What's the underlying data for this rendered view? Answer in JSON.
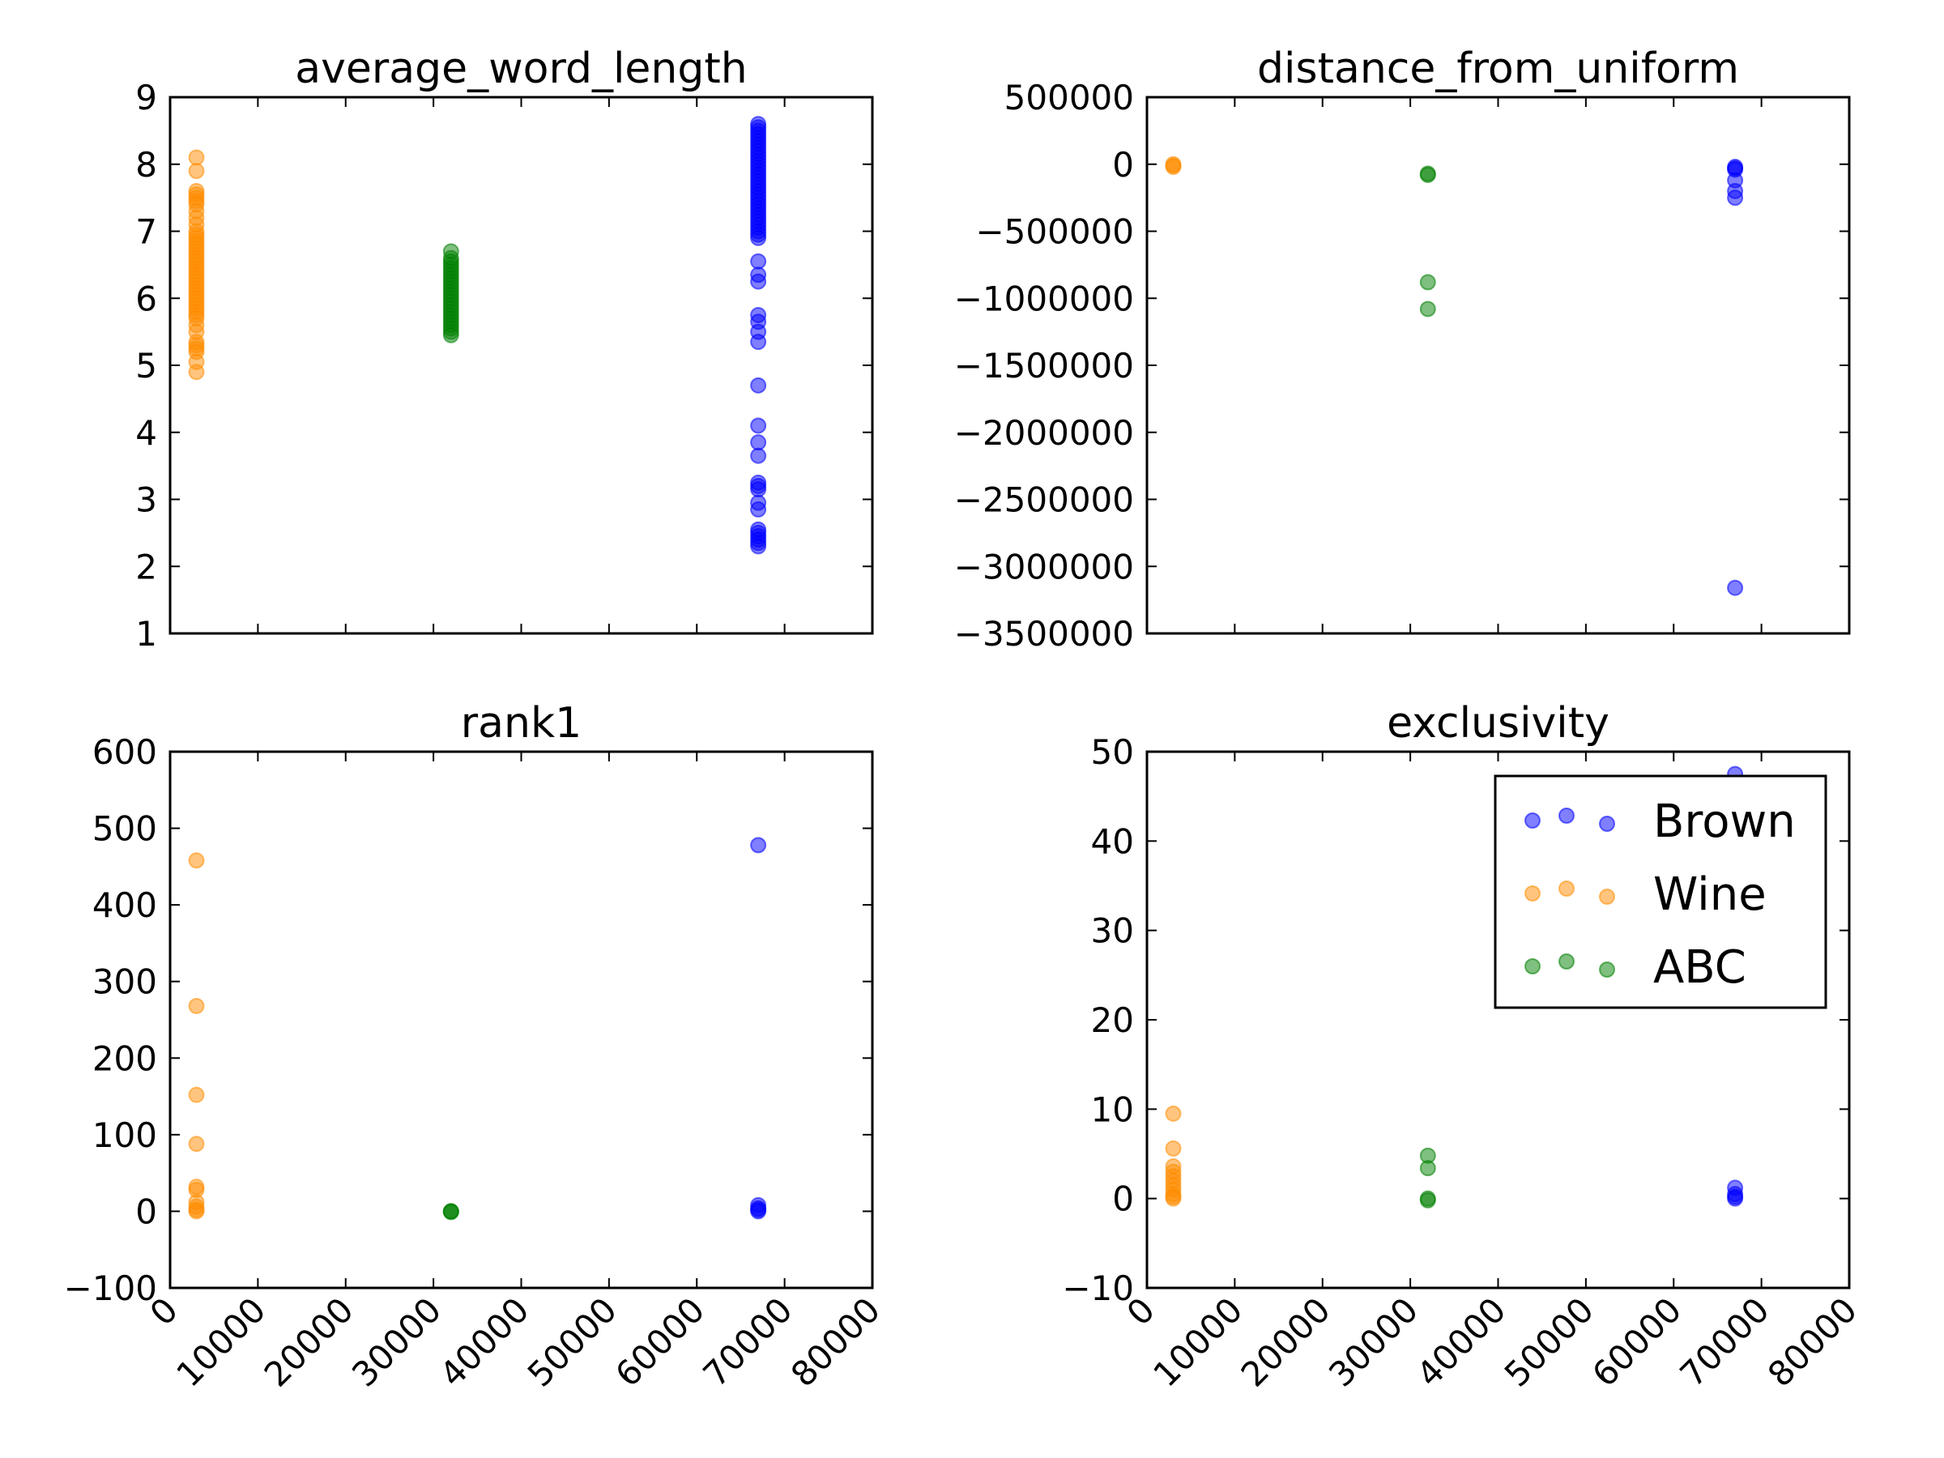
{
  "colors": {
    "Brown": "#0000ff",
    "Wine": "#ff8c00",
    "ABC": "#008000"
  },
  "legend": {
    "location": "upper right",
    "subplot": 3,
    "entries": [
      "Brown",
      "Wine",
      "ABC"
    ]
  },
  "chart_data": [
    {
      "type": "scatter",
      "title": "average_word_length",
      "xlim": [
        0,
        80000
      ],
      "ylim": [
        1,
        9
      ],
      "xticks": [
        0,
        10000,
        20000,
        30000,
        40000,
        50000,
        60000,
        70000,
        80000
      ],
      "yticks": [
        1,
        2,
        3,
        4,
        5,
        6,
        7,
        8,
        9
      ],
      "show_xticklabels": false,
      "series": [
        {
          "name": "Brown",
          "x": 67000,
          "y": [
            8.6,
            8.55,
            8.5,
            8.45,
            8.4,
            8.35,
            8.3,
            8.25,
            8.2,
            8.15,
            8.1,
            8.05,
            8.0,
            7.95,
            7.9,
            7.85,
            7.8,
            7.75,
            7.7,
            7.65,
            7.6,
            7.55,
            7.5,
            7.45,
            7.4,
            7.35,
            7.3,
            7.25,
            7.2,
            7.15,
            7.1,
            7.05,
            7.0,
            6.95,
            6.9,
            6.55,
            6.35,
            6.25,
            5.75,
            5.65,
            5.5,
            5.35,
            4.7,
            4.1,
            3.85,
            3.65,
            3.25,
            3.2,
            3.15,
            2.95,
            2.85,
            2.55,
            2.5,
            2.45,
            2.4,
            2.35,
            2.3
          ]
        },
        {
          "name": "Wine",
          "x": 3000,
          "y": [
            8.1,
            7.9,
            7.6,
            7.55,
            7.5,
            7.45,
            7.4,
            7.3,
            7.2,
            7.1,
            7.0,
            6.95,
            6.9,
            6.85,
            6.8,
            6.75,
            6.7,
            6.65,
            6.6,
            6.55,
            6.5,
            6.45,
            6.4,
            6.35,
            6.3,
            6.25,
            6.2,
            6.15,
            6.1,
            6.05,
            6.0,
            5.95,
            5.9,
            5.85,
            5.8,
            5.75,
            5.7,
            5.6,
            5.5,
            5.35,
            5.3,
            5.25,
            5.2,
            5.05,
            4.9
          ]
        },
        {
          "name": "ABC",
          "x": 32000,
          "y": [
            6.7,
            6.6,
            6.55,
            6.5,
            6.45,
            6.4,
            6.35,
            6.3,
            6.25,
            6.2,
            6.15,
            6.1,
            6.05,
            6.0,
            5.95,
            5.9,
            5.85,
            5.8,
            5.75,
            5.7,
            5.65,
            5.6,
            5.55,
            5.5,
            5.45
          ]
        }
      ]
    },
    {
      "type": "scatter",
      "title": "distance_from_uniform",
      "xlim": [
        0,
        80000
      ],
      "ylim": [
        -3500000,
        500000
      ],
      "xticks": [
        0,
        10000,
        20000,
        30000,
        40000,
        50000,
        60000,
        70000,
        80000
      ],
      "yticks": [
        -3500000,
        -3000000,
        -2500000,
        -2000000,
        -1500000,
        -1000000,
        -500000,
        0,
        500000
      ],
      "show_xticklabels": false,
      "series": [
        {
          "name": "Brown",
          "x": 67000,
          "y": [
            -20000,
            -30000,
            -40000,
            -120000,
            -200000,
            -250000,
            -3160000
          ]
        },
        {
          "name": "Wine",
          "x": 3000,
          "y": [
            0,
            -10000,
            -20000
          ]
        },
        {
          "name": "ABC",
          "x": 32000,
          "y": [
            -70000,
            -80000,
            -880000,
            -1080000
          ]
        }
      ]
    },
    {
      "type": "scatter",
      "title": "rank1",
      "xlim": [
        0,
        80000
      ],
      "ylim": [
        -100,
        600
      ],
      "xticks": [
        0,
        10000,
        20000,
        30000,
        40000,
        50000,
        60000,
        70000,
        80000
      ],
      "yticks": [
        -100,
        0,
        100,
        200,
        300,
        400,
        500,
        600
      ],
      "show_xticklabels": true,
      "series": [
        {
          "name": "Brown",
          "x": 67000,
          "y": [
            478,
            8,
            4,
            2,
            0
          ]
        },
        {
          "name": "Wine",
          "x": 3000,
          "y": [
            458,
            268,
            152,
            88,
            32,
            28,
            12,
            6,
            2,
            0
          ]
        },
        {
          "name": "ABC",
          "x": 32000,
          "y": [
            0,
            0,
            -1
          ]
        }
      ]
    },
    {
      "type": "scatter",
      "title": "exclusivity",
      "xlim": [
        0,
        80000
      ],
      "ylim": [
        -10,
        50
      ],
      "xticks": [
        0,
        10000,
        20000,
        30000,
        40000,
        50000,
        60000,
        70000,
        80000
      ],
      "yticks": [
        -10,
        0,
        10,
        20,
        30,
        40,
        50
      ],
      "show_xticklabels": true,
      "series": [
        {
          "name": "Brown",
          "x": 67000,
          "y": [
            47.5,
            1.2,
            0.5,
            0.2,
            0
          ]
        },
        {
          "name": "Wine",
          "x": 3000,
          "y": [
            9.5,
            5.6,
            3.6,
            3.0,
            2.5,
            2.0,
            1.5,
            1.0,
            0.5,
            0.2,
            0
          ]
        },
        {
          "name": "ABC",
          "x": 32000,
          "y": [
            4.8,
            3.4,
            0,
            -0.2
          ]
        }
      ]
    }
  ]
}
